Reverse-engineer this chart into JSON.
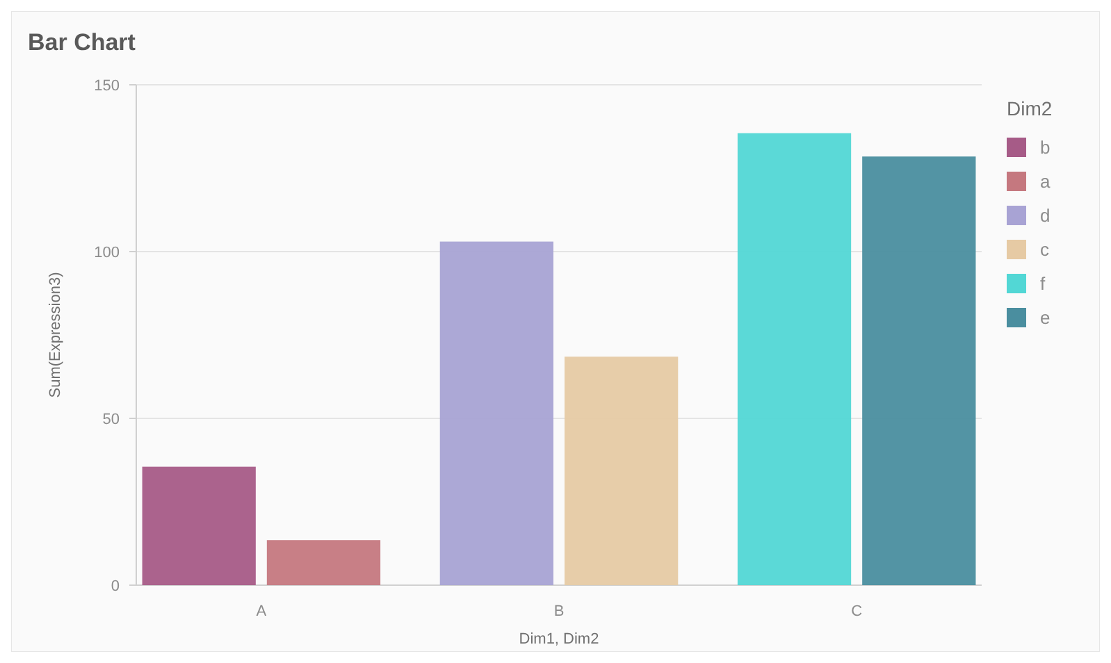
{
  "chart_data": {
    "type": "bar",
    "title": "Bar Chart",
    "xlabel": "Dim1, Dim2",
    "ylabel": "Sum(Expression3)",
    "legend_title": "Dim2",
    "categories": [
      "A",
      "B",
      "C"
    ],
    "series": [
      {
        "name": "b",
        "color": "#a65b87",
        "values": [
          35.5,
          null,
          null
        ]
      },
      {
        "name": "a",
        "color": "#c5787f",
        "values": [
          13.5,
          null,
          null
        ]
      },
      {
        "name": "d",
        "color": "#a8a3d4",
        "values": [
          null,
          103,
          null
        ]
      },
      {
        "name": "c",
        "color": "#e6caa4",
        "values": [
          null,
          68.5,
          null
        ]
      },
      {
        "name": "f",
        "color": "#52d7d5",
        "values": [
          null,
          null,
          135.5
        ]
      },
      {
        "name": "e",
        "color": "#4a8e9f",
        "values": [
          null,
          null,
          128.5
        ]
      }
    ],
    "ylim": [
      0,
      150
    ],
    "yticks": [
      0,
      50,
      100,
      150
    ],
    "grid": "y",
    "legend": "top right"
  }
}
